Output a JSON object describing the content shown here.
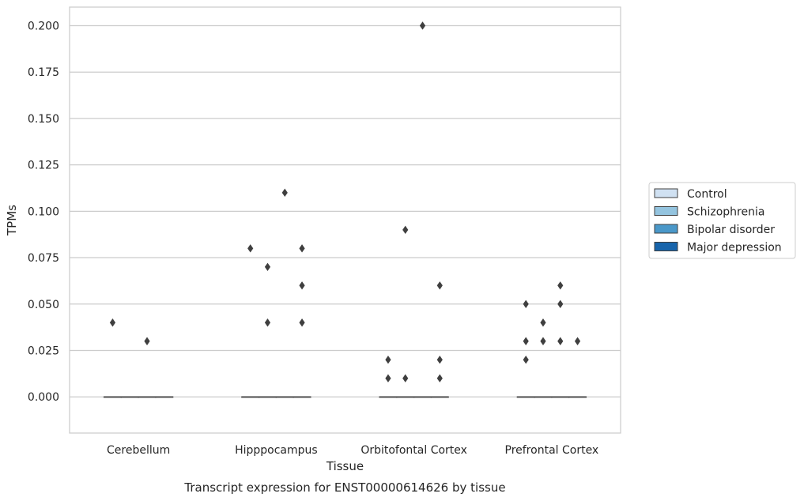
{
  "chart_data": {
    "type": "box",
    "title": "Transcript expression for ENST00000614626 by tissue",
    "xlabel": "Tissue",
    "ylabel": "TPMs",
    "ylim": [
      -0.0195,
      0.21
    ],
    "yticks": [
      "0.000",
      "0.025",
      "0.050",
      "0.075",
      "0.100",
      "0.125",
      "0.150",
      "0.175",
      "0.200"
    ],
    "grid": true,
    "legend_position": "right",
    "categories": [
      "Cerebellum",
      "Hipppocampus",
      "Orbitofontal Cortex",
      "Prefrontal Cortex"
    ],
    "series": [
      {
        "name": "Control",
        "color": "#d0e1f2",
        "boxes": [
          {
            "median": 0,
            "q1": 0,
            "q3": 0,
            "outliers": [
              0.04
            ]
          },
          {
            "median": 0,
            "q1": 0,
            "q3": 0,
            "outliers": [
              0.08
            ]
          },
          {
            "median": 0,
            "q1": 0,
            "q3": 0,
            "outliers": [
              0.02,
              0.01
            ]
          },
          {
            "median": 0,
            "q1": 0,
            "q3": 0,
            "outliers": [
              0.05,
              0.03,
              0.02
            ]
          }
        ]
      },
      {
        "name": "Schizophrenia",
        "color": "#94c4df",
        "boxes": [
          {
            "median": 0,
            "q1": 0,
            "q3": 0,
            "outliers": []
          },
          {
            "median": 0,
            "q1": 0,
            "q3": 0,
            "outliers": [
              0.07,
              0.04
            ]
          },
          {
            "median": 0,
            "q1": 0,
            "q3": 0,
            "outliers": [
              0.09,
              0.01
            ]
          },
          {
            "median": 0,
            "q1": 0,
            "q3": 0,
            "outliers": [
              0.04,
              0.03
            ]
          }
        ]
      },
      {
        "name": "Bipolar disorder",
        "color": "#4a98c9",
        "boxes": [
          {
            "median": 0,
            "q1": 0,
            "q3": 0,
            "outliers": [
              0.03
            ]
          },
          {
            "median": 0,
            "q1": 0,
            "q3": 0,
            "outliers": [
              0.11
            ]
          },
          {
            "median": 0,
            "q1": 0,
            "q3": 0,
            "outliers": [
              0.2
            ]
          },
          {
            "median": 0,
            "q1": 0,
            "q3": 0,
            "outliers": [
              0.06,
              0.05,
              0.03
            ]
          }
        ]
      },
      {
        "name": "Major depression",
        "color": "#1764ab",
        "boxes": [
          {
            "median": 0,
            "q1": 0,
            "q3": 0,
            "outliers": []
          },
          {
            "median": 0,
            "q1": 0,
            "q3": 0,
            "outliers": [
              0.08,
              0.06,
              0.04
            ]
          },
          {
            "median": 0,
            "q1": 0,
            "q3": 0,
            "outliers": [
              0.06,
              0.02,
              0.01
            ]
          },
          {
            "median": 0,
            "q1": 0,
            "q3": 0,
            "outliers": [
              0.03
            ]
          }
        ]
      }
    ]
  }
}
